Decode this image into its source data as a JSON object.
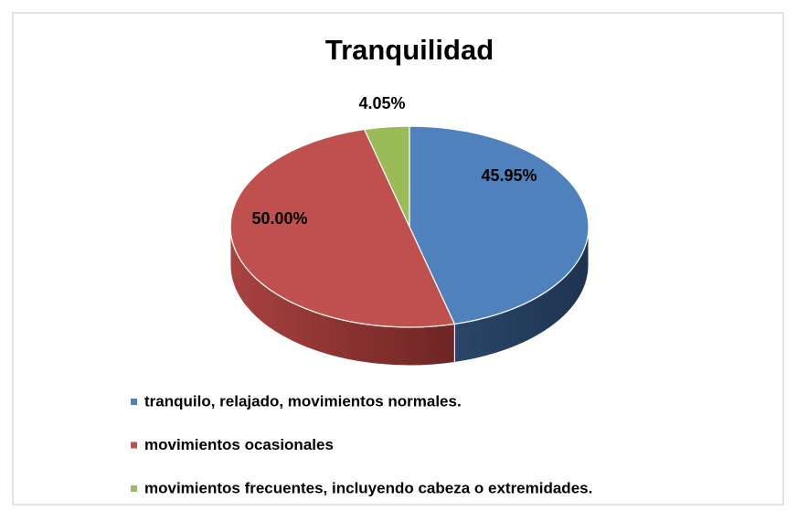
{
  "chart_data": {
    "type": "pie3d",
    "title": "Tranquilidad",
    "categories": [
      "tranquilo, relajado, movimientos normales.",
      "movimientos ocasionales",
      "movimientos frecuentes, incluyendo cabeza o extremidades."
    ],
    "values": [
      45.95,
      50.0,
      4.05
    ],
    "value_labels": [
      "45.95%",
      "50.00%",
      "4.05%"
    ],
    "colors": [
      "#4f81bd",
      "#c0504d",
      "#9bbb59"
    ],
    "legend": "bottom"
  }
}
